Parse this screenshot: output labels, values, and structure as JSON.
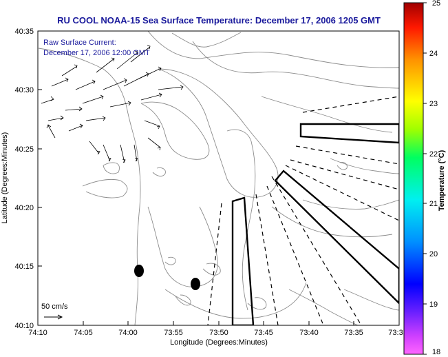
{
  "title": "RU COOL  NOAA-15  Sea Surface Temperature:  December 17, 2006 1205 GMT",
  "legend": {
    "line1": "Raw Surface Current:",
    "line2": "December 17, 2006 12:00 GMT",
    "scale_label": "50 cm/s"
  },
  "axes": {
    "xlabel": "Longitude (Degrees:Minutes)",
    "ylabel": "Latitude (Degrees:Minutes)",
    "xticks": [
      "74:10",
      "74:05",
      "74:00",
      "73:55",
      "73:50",
      "73:45",
      "73:40",
      "73:35",
      "73:3"
    ],
    "yticks": [
      "40:35",
      "40:30",
      "40:25",
      "40:20",
      "40:15",
      "40:10"
    ]
  },
  "colorbar": {
    "label": "Temperature (°C)",
    "ticks": [
      "25",
      "24",
      "23",
      "22",
      "21",
      "20",
      "19",
      "18"
    ],
    "range": [
      18,
      25
    ]
  },
  "colors": {
    "title": "#1a1a9c",
    "contour": "#8c8c8c",
    "outline": "#000000"
  }
}
